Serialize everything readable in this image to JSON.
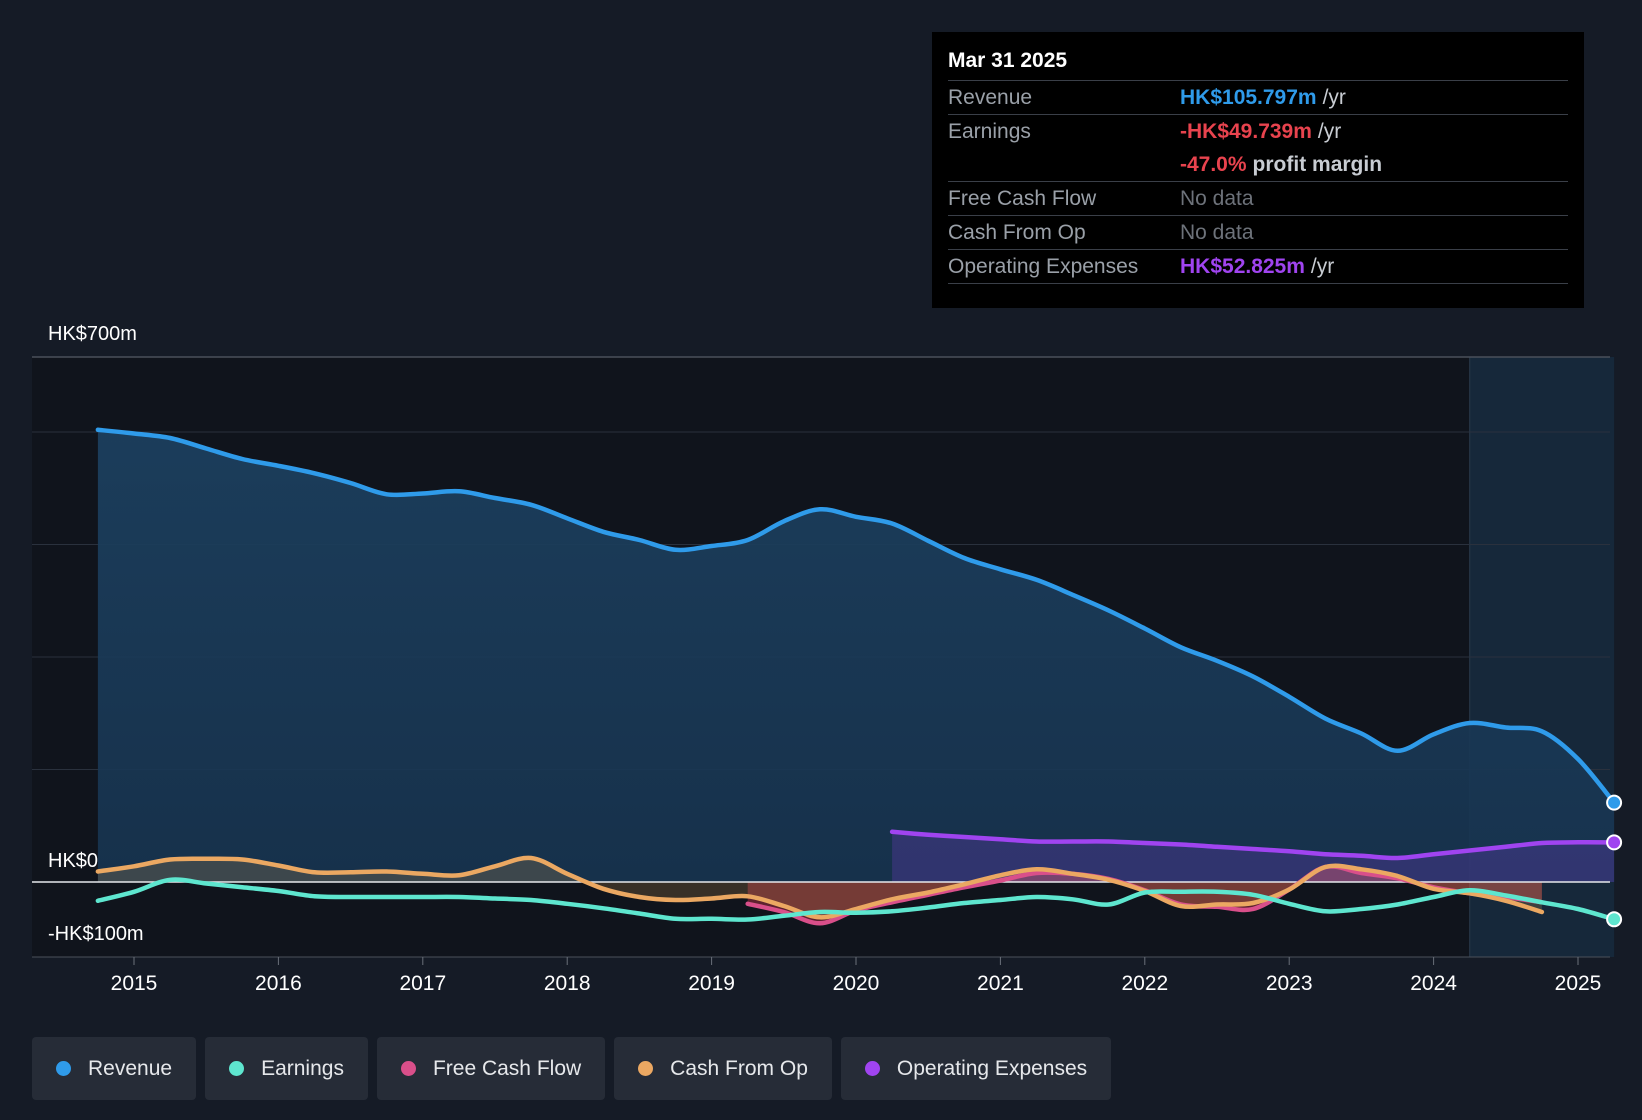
{
  "chart_data": {
    "type": "area",
    "y_unit": "HK$m",
    "y_axis_labels": [
      {
        "value": 700,
        "label": "HK$700m"
      },
      {
        "value": 0,
        "label": "HK$0"
      },
      {
        "value": -100,
        "label": "-HK$100m"
      }
    ],
    "ylim": [
      -100,
      700
    ],
    "xlim": [
      2014.3,
      2025.25
    ],
    "x_ticks": [
      2015,
      2016,
      2017,
      2018,
      2019,
      2020,
      2021,
      2022,
      2023,
      2024,
      2025
    ],
    "series": [
      {
        "name": "Revenue",
        "color": "#2f9bea",
        "fill": true,
        "points": [
          [
            2014.75,
            603
          ],
          [
            2015.0,
            598
          ],
          [
            2015.25,
            592
          ],
          [
            2015.5,
            578
          ],
          [
            2015.75,
            564
          ],
          [
            2016.0,
            555
          ],
          [
            2016.25,
            545
          ],
          [
            2016.5,
            532
          ],
          [
            2016.75,
            517
          ],
          [
            2017.0,
            518
          ],
          [
            2017.25,
            521
          ],
          [
            2017.5,
            512
          ],
          [
            2017.75,
            503
          ],
          [
            2018.0,
            485
          ],
          [
            2018.25,
            467
          ],
          [
            2018.5,
            456
          ],
          [
            2018.75,
            443
          ],
          [
            2019.0,
            448
          ],
          [
            2019.25,
            456
          ],
          [
            2019.5,
            481
          ],
          [
            2019.75,
            497
          ],
          [
            2020.0,
            487
          ],
          [
            2020.25,
            478
          ],
          [
            2020.5,
            455
          ],
          [
            2020.75,
            432
          ],
          [
            2021.0,
            417
          ],
          [
            2021.25,
            403
          ],
          [
            2021.5,
            383
          ],
          [
            2021.75,
            362
          ],
          [
            2022.0,
            338
          ],
          [
            2022.25,
            313
          ],
          [
            2022.5,
            295
          ],
          [
            2022.75,
            274
          ],
          [
            2023.0,
            247
          ],
          [
            2023.25,
            218
          ],
          [
            2023.5,
            198
          ],
          [
            2023.75,
            175
          ],
          [
            2024.0,
            197
          ],
          [
            2024.25,
            212
          ],
          [
            2024.5,
            206
          ],
          [
            2024.75,
            201
          ],
          [
            2025.0,
            164
          ],
          [
            2025.25,
            105.797
          ]
        ]
      },
      {
        "name": "Earnings",
        "color": "#5ee6cf",
        "fill": false,
        "points": [
          [
            2014.75,
            -25
          ],
          [
            2015.0,
            -13
          ],
          [
            2015.25,
            3
          ],
          [
            2015.5,
            -2
          ],
          [
            2015.75,
            -7
          ],
          [
            2016.0,
            -12
          ],
          [
            2016.25,
            -19
          ],
          [
            2016.5,
            -20
          ],
          [
            2016.75,
            -20
          ],
          [
            2017.0,
            -20
          ],
          [
            2017.25,
            -20
          ],
          [
            2017.5,
            -22
          ],
          [
            2017.75,
            -24
          ],
          [
            2018.0,
            -29
          ],
          [
            2018.25,
            -35
          ],
          [
            2018.5,
            -42
          ],
          [
            2018.75,
            -49
          ],
          [
            2019.0,
            -49
          ],
          [
            2019.25,
            -50
          ],
          [
            2019.5,
            -45
          ],
          [
            2019.75,
            -40
          ],
          [
            2020.0,
            -41
          ],
          [
            2020.25,
            -39
          ],
          [
            2020.5,
            -34
          ],
          [
            2020.75,
            -28
          ],
          [
            2021.0,
            -24
          ],
          [
            2021.25,
            -20
          ],
          [
            2021.5,
            -23
          ],
          [
            2021.75,
            -30
          ],
          [
            2022.0,
            -14
          ],
          [
            2022.25,
            -13
          ],
          [
            2022.5,
            -13
          ],
          [
            2022.75,
            -17
          ],
          [
            2023.0,
            -29
          ],
          [
            2023.25,
            -39
          ],
          [
            2023.5,
            -36
          ],
          [
            2023.75,
            -30
          ],
          [
            2024.0,
            -20
          ],
          [
            2024.25,
            -11
          ],
          [
            2024.5,
            -18
          ],
          [
            2024.75,
            -27
          ],
          [
            2025.0,
            -36
          ],
          [
            2025.25,
            -49.739
          ]
        ]
      },
      {
        "name": "Free Cash Flow",
        "color": "#d94f8a",
        "fill": true,
        "points": [
          [
            2019.25,
            -29
          ],
          [
            2019.5,
            -40
          ],
          [
            2019.75,
            -55
          ],
          [
            2020.0,
            -38
          ],
          [
            2020.25,
            -27
          ],
          [
            2020.5,
            -17
          ],
          [
            2020.75,
            -7
          ],
          [
            2021.0,
            2
          ],
          [
            2021.25,
            12
          ],
          [
            2021.5,
            11
          ],
          [
            2021.75,
            4
          ],
          [
            2022.0,
            -11
          ],
          [
            2022.25,
            -30
          ],
          [
            2022.5,
            -33
          ],
          [
            2022.75,
            -36
          ],
          [
            2023.0,
            -10
          ],
          [
            2023.25,
            20
          ],
          [
            2023.5,
            12
          ],
          [
            2023.75,
            5
          ],
          [
            2024.0,
            -7
          ],
          [
            2024.25,
            -15
          ],
          [
            2024.5,
            -20
          ],
          [
            2024.75,
            -27
          ]
        ]
      },
      {
        "name": "Cash From Op",
        "color": "#eba862",
        "fill": true,
        "points": [
          [
            2014.75,
            14
          ],
          [
            2015.0,
            21
          ],
          [
            2015.25,
            30
          ],
          [
            2015.5,
            31
          ],
          [
            2015.75,
            30
          ],
          [
            2016.0,
            22
          ],
          [
            2016.25,
            13
          ],
          [
            2016.5,
            13
          ],
          [
            2016.75,
            14
          ],
          [
            2017.0,
            11
          ],
          [
            2017.25,
            9
          ],
          [
            2017.5,
            21
          ],
          [
            2017.75,
            32
          ],
          [
            2018.0,
            11
          ],
          [
            2018.25,
            -9
          ],
          [
            2018.5,
            -20
          ],
          [
            2018.75,
            -24
          ],
          [
            2019.0,
            -22
          ],
          [
            2019.25,
            -19
          ],
          [
            2019.5,
            -32
          ],
          [
            2019.75,
            -47
          ],
          [
            2020.0,
            -36
          ],
          [
            2020.25,
            -23
          ],
          [
            2020.5,
            -14
          ],
          [
            2020.75,
            -3
          ],
          [
            2021.0,
            9
          ],
          [
            2021.25,
            17
          ],
          [
            2021.5,
            11
          ],
          [
            2021.75,
            3
          ],
          [
            2022.0,
            -12
          ],
          [
            2022.25,
            -32
          ],
          [
            2022.5,
            -30
          ],
          [
            2022.75,
            -28
          ],
          [
            2023.0,
            -10
          ],
          [
            2023.25,
            20
          ],
          [
            2023.5,
            17
          ],
          [
            2023.75,
            8
          ],
          [
            2024.0,
            -9
          ],
          [
            2024.25,
            -15
          ],
          [
            2024.5,
            -25
          ],
          [
            2024.75,
            -40
          ]
        ]
      },
      {
        "name": "Operating Expenses",
        "color": "#a044f0",
        "fill": true,
        "points": [
          [
            2020.25,
            67
          ],
          [
            2020.5,
            63
          ],
          [
            2020.75,
            60
          ],
          [
            2021.0,
            57
          ],
          [
            2021.25,
            54
          ],
          [
            2021.5,
            54
          ],
          [
            2021.75,
            54
          ],
          [
            2022.0,
            52
          ],
          [
            2022.25,
            50
          ],
          [
            2022.5,
            47
          ],
          [
            2022.75,
            44
          ],
          [
            2023.0,
            41
          ],
          [
            2023.25,
            37
          ],
          [
            2023.5,
            35
          ],
          [
            2023.75,
            32
          ],
          [
            2024.0,
            37
          ],
          [
            2024.25,
            42
          ],
          [
            2024.5,
            47
          ],
          [
            2024.75,
            52
          ],
          [
            2025.0,
            53
          ],
          [
            2025.25,
            52.825
          ]
        ]
      }
    ],
    "highlight_period": {
      "from": 2024.25,
      "to": 2025.25
    }
  },
  "tooltip": {
    "date": "Mar 31 2025",
    "rows": [
      {
        "label": "Revenue",
        "value": "HK$105.797m",
        "unit": "/yr",
        "color": "#2f9bea"
      },
      {
        "label": "Earnings",
        "value": "-HK$49.739m",
        "unit": "/yr",
        "color": "#e8434e"
      },
      {
        "label": "",
        "value": "-47.0%",
        "unit": "profit margin",
        "color": "#e8434e"
      },
      {
        "label": "Free Cash Flow",
        "value": "No data",
        "unit": ""
      },
      {
        "label": "Cash From Op",
        "value": "No data",
        "unit": ""
      },
      {
        "label": "Operating Expenses",
        "value": "HK$52.825m",
        "unit": "/yr",
        "color": "#a044f0"
      }
    ]
  },
  "legend": [
    {
      "label": "Revenue",
      "color": "#2f9bea"
    },
    {
      "label": "Earnings",
      "color": "#5ee6cf"
    },
    {
      "label": "Free Cash Flow",
      "color": "#d94f8a"
    },
    {
      "label": "Cash From Op",
      "color": "#eba862"
    },
    {
      "label": "Operating Expenses",
      "color": "#a044f0"
    }
  ]
}
